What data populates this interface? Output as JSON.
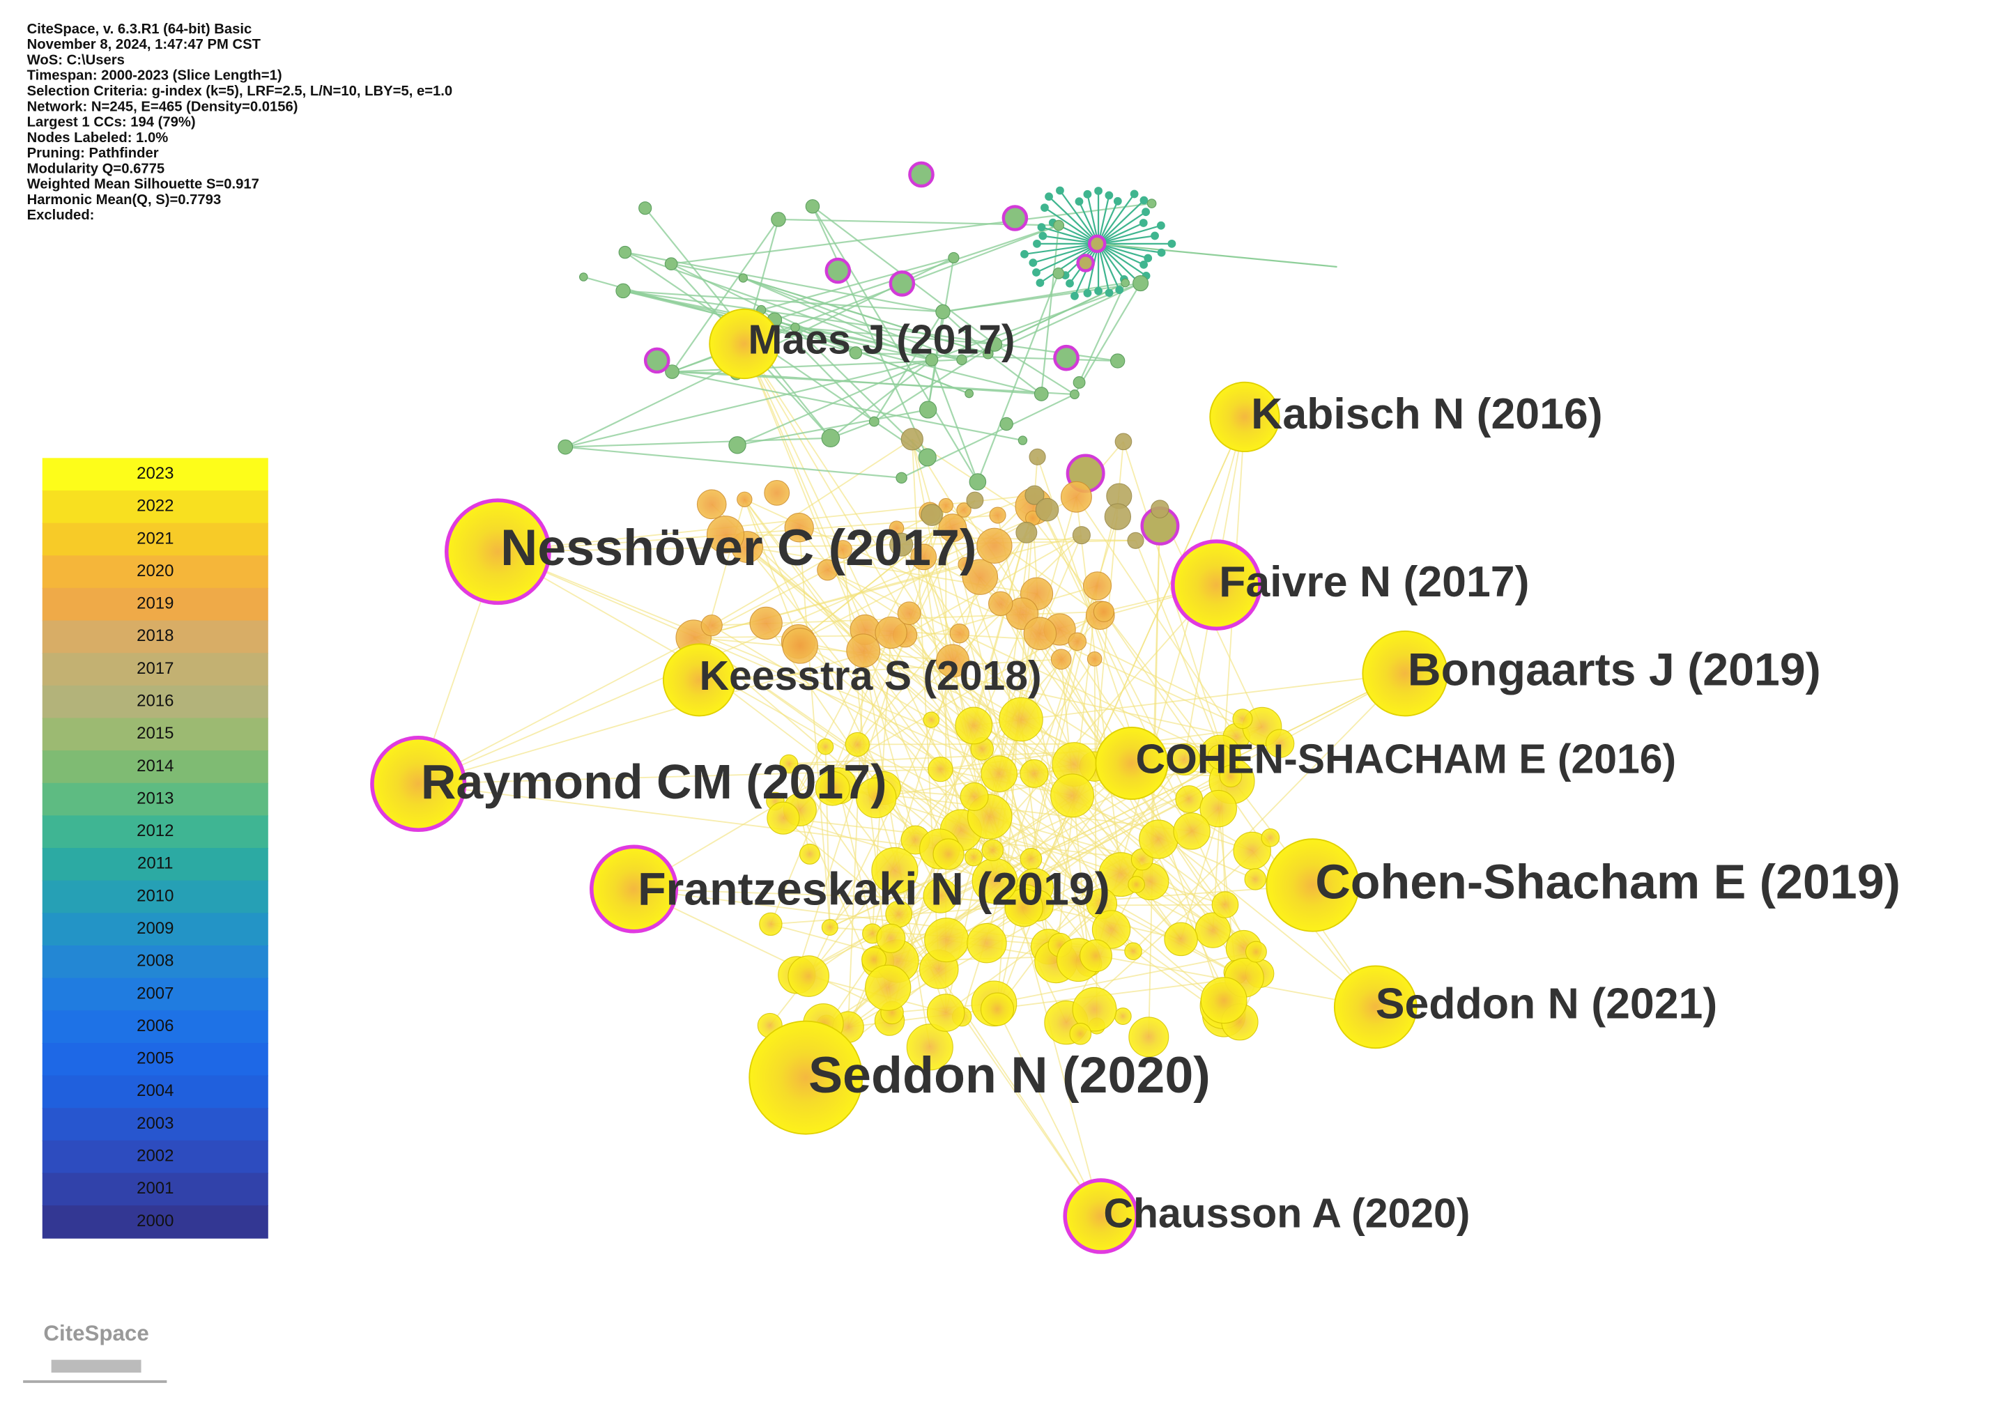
{
  "header": {
    "lines": [
      "CiteSpace, v. 6.3.R1 (64-bit) Basic",
      "November 8, 2024, 1:47:47 PM CST",
      "WoS: C:\\Users",
      "Timespan: 2000-2023 (Slice Length=1)",
      "Selection Criteria: g-index (k=5), LRF=2.5, L/N=10, LBY=5, e=1.0",
      "Network: N=245, E=465 (Density=0.0156)",
      "Largest 1 CCs: 194 (79%)",
      "Nodes Labeled: 1.0%",
      "Pruning: Pathfinder",
      "Modularity Q=0.6775",
      "Weighted Mean Silhouette S=0.917",
      "Harmonic Mean(Q, S)=0.7793",
      "Excluded:"
    ]
  },
  "legend": {
    "years": [
      2023,
      2022,
      2021,
      2020,
      2019,
      2018,
      2017,
      2016,
      2015,
      2014,
      2013,
      2012,
      2011,
      2010,
      2009,
      2008,
      2007,
      2006,
      2005,
      2004,
      2003,
      2002,
      2001,
      2000
    ],
    "colors": [
      "#fdfd1a",
      "#f8e020",
      "#f7cb28",
      "#f5b63a",
      "#efaa48",
      "#d8ad66",
      "#c3b172",
      "#b3b37a",
      "#9cba72",
      "#7fbb73",
      "#5ebb82",
      "#3fb593",
      "#2caaa3",
      "#26a0b5",
      "#2394c6",
      "#2387d4",
      "#207ce0",
      "#1e72e6",
      "#1e68e6",
      "#2060dd",
      "#2756cf",
      "#2d4cbf",
      "#3142aa",
      "#333793"
    ]
  },
  "nodes": [
    {
      "label": "Maes J (2017)"
    },
    {
      "label": "Kabisch N (2016)"
    },
    {
      "label": "Nesshöver C (2017)"
    },
    {
      "label": "Faivre N (2017)"
    },
    {
      "label": "Keesstra S (2018)"
    },
    {
      "label": "Bongaarts J (2019)"
    },
    {
      "label": "COHEN-SHACHAM E (2016)"
    },
    {
      "label": "Raymond CM (2017)"
    },
    {
      "label": "Frantzeskaki N (2019)"
    },
    {
      "label": "Cohen-Shacham E (2019)"
    },
    {
      "label": "Seddon N (2021)"
    },
    {
      "label": "Seddon N (2020)"
    },
    {
      "label": "Chausson A (2020)"
    }
  ],
  "logo": {
    "text": "CiteSpace"
  }
}
